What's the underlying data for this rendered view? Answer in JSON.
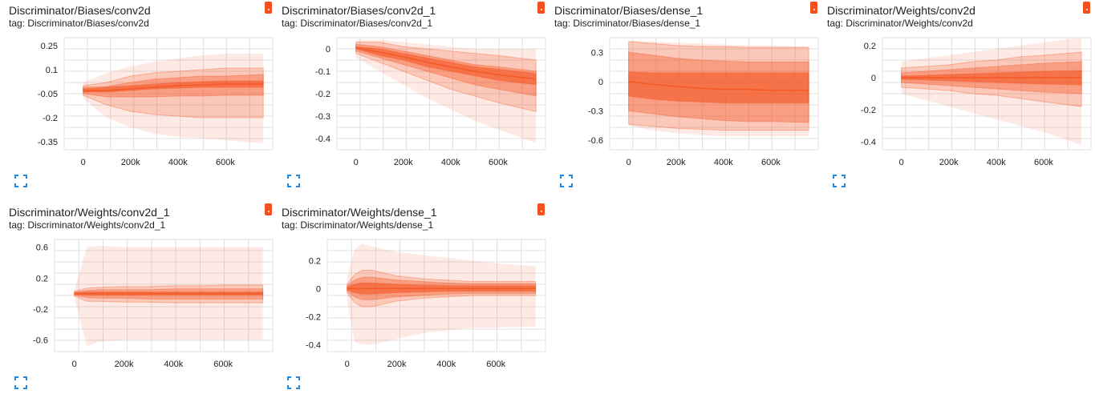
{
  "colors": {
    "band": "#f4511e",
    "menu": "#f4511e",
    "icon": "#1e88e5",
    "grid": "#e0e0e0"
  },
  "icons": {
    "menu": "menu-dot-icon",
    "expand": "fullscreen-icon"
  },
  "chart_data": [
    {
      "type": "area",
      "title": "Discriminator/Biases/conv2d",
      "subtitle": "tag: Discriminator/Biases/conv2d",
      "x_ticks": [
        0,
        200000,
        400000,
        600000
      ],
      "x_tick_labels": [
        "0",
        "200k",
        "400k",
        "600k"
      ],
      "y_ticks": [
        0.25,
        0.1,
        -0.05,
        -0.2,
        -0.35
      ],
      "y_tick_labels": [
        "0.25",
        "0.1",
        "-0.05",
        "-0.2",
        "-0.35"
      ],
      "xlim": [
        -80000,
        800000
      ],
      "ylim": [
        -0.4,
        0.3
      ],
      "grid": true,
      "x": [
        0,
        100000,
        200000,
        300000,
        400000,
        500000,
        600000,
        760000
      ],
      "bands": [
        [
          [
            -0.08,
            -0.2,
            -0.26,
            -0.3,
            -0.32,
            -0.33,
            -0.34,
            -0.36
          ],
          [
            0.02,
            0.08,
            0.12,
            0.15,
            0.17,
            0.19,
            0.2,
            0.2
          ]
        ],
        [
          [
            -0.06,
            -0.12,
            -0.16,
            -0.18,
            -0.19,
            -0.2,
            -0.2,
            -0.2
          ],
          [
            0.0,
            0.02,
            0.06,
            0.08,
            0.09,
            0.1,
            0.11,
            0.11
          ]
        ],
        [
          [
            -0.05,
            -0.07,
            -0.07,
            -0.07,
            -0.065,
            -0.065,
            -0.06,
            -0.06
          ],
          [
            -0.01,
            -0.005,
            0.02,
            0.04,
            0.05,
            0.06,
            0.06,
            0.07
          ]
        ],
        [
          [
            -0.04,
            -0.04,
            -0.03,
            -0.02,
            -0.015,
            -0.01,
            -0.01,
            -0.01
          ],
          [
            -0.02,
            -0.01,
            0.0,
            0.01,
            0.02,
            0.025,
            0.03,
            0.03
          ]
        ]
      ],
      "median": [
        -0.03,
        -0.03,
        -0.02,
        -0.01,
        0.0,
        0.005,
        0.01,
        0.01
      ]
    },
    {
      "type": "area",
      "title": "Discriminator/Biases/conv2d_1",
      "subtitle": "tag: Discriminator/Biases/conv2d_1",
      "x_ticks": [
        0,
        200000,
        400000,
        600000
      ],
      "x_tick_labels": [
        "0",
        "200k",
        "400k",
        "600k"
      ],
      "y_ticks": [
        0,
        -0.1,
        -0.2,
        -0.3,
        -0.4
      ],
      "y_tick_labels": [
        "0",
        "-0.1",
        "-0.2",
        "-0.3",
        "-0.4"
      ],
      "xlim": [
        -80000,
        800000
      ],
      "ylim": [
        -0.45,
        0.05
      ],
      "grid": true,
      "x": [
        0,
        100000,
        200000,
        300000,
        400000,
        500000,
        600000,
        760000
      ],
      "bands": [
        [
          [
            -0.04,
            -0.1,
            -0.16,
            -0.22,
            -0.27,
            -0.32,
            -0.36,
            -0.42
          ],
          [
            0.04,
            0.04,
            0.03,
            0.02,
            0.01,
            0.0,
            0.0,
            0.0
          ]
        ],
        [
          [
            -0.02,
            -0.06,
            -0.1,
            -0.14,
            -0.18,
            -0.21,
            -0.24,
            -0.28
          ],
          [
            0.03,
            0.03,
            0.01,
            0.0,
            -0.01,
            -0.02,
            -0.03,
            -0.05
          ]
        ],
        [
          [
            -0.01,
            -0.04,
            -0.07,
            -0.1,
            -0.13,
            -0.16,
            -0.18,
            -0.21
          ],
          [
            0.02,
            0.01,
            -0.01,
            -0.03,
            -0.05,
            -0.07,
            -0.08,
            -0.1
          ]
        ],
        [
          [
            0.0,
            -0.03,
            -0.05,
            -0.08,
            -0.1,
            -0.12,
            -0.14,
            -0.16
          ],
          [
            0.01,
            0.0,
            -0.02,
            -0.04,
            -0.06,
            -0.08,
            -0.09,
            -0.11
          ]
        ]
      ],
      "median": [
        0.005,
        -0.015,
        -0.035,
        -0.06,
        -0.08,
        -0.1,
        -0.115,
        -0.135
      ]
    },
    {
      "type": "area",
      "title": "Discriminator/Biases/dense_1",
      "subtitle": "tag: Discriminator/Biases/dense_1",
      "x_ticks": [
        0,
        200000,
        400000,
        600000
      ],
      "x_tick_labels": [
        "0",
        "200k",
        "400k",
        "600k"
      ],
      "y_ticks": [
        0.3,
        0,
        -0.3,
        -0.6
      ],
      "y_tick_labels": [
        "0.3",
        "0",
        "-0.3",
        "-0.6"
      ],
      "xlim": [
        -80000,
        800000
      ],
      "ylim": [
        -0.7,
        0.45
      ],
      "grid": true,
      "x": [
        0,
        100000,
        200000,
        300000,
        400000,
        500000,
        600000,
        760000
      ],
      "bands": [
        [
          [
            -0.45,
            -0.5,
            -0.53,
            -0.55,
            -0.56,
            -0.56,
            -0.56,
            -0.56
          ],
          [
            0.42,
            0.41,
            0.4,
            0.39,
            0.38,
            0.37,
            0.37,
            0.36
          ]
        ],
        [
          [
            -0.44,
            -0.46,
            -0.48,
            -0.49,
            -0.5,
            -0.5,
            -0.5,
            -0.5
          ],
          [
            0.41,
            0.39,
            0.37,
            0.36,
            0.36,
            0.35,
            0.35,
            0.35
          ]
        ],
        [
          [
            -0.3,
            -0.33,
            -0.36,
            -0.38,
            -0.4,
            -0.41,
            -0.41,
            -0.42
          ],
          [
            0.3,
            0.27,
            0.24,
            0.22,
            0.21,
            0.2,
            0.2,
            0.2
          ]
        ],
        [
          [
            -0.15,
            -0.18,
            -0.2,
            -0.21,
            -0.22,
            -0.22,
            -0.22,
            -0.22
          ],
          [
            0.1,
            0.09,
            0.09,
            0.09,
            0.09,
            0.09,
            0.09,
            0.09
          ]
        ]
      ],
      "median": [
        0.0,
        -0.03,
        -0.05,
        -0.07,
        -0.08,
        -0.08,
        -0.09,
        -0.09
      ]
    },
    {
      "type": "area",
      "title": "Discriminator/Weights/conv2d",
      "subtitle": "tag: Discriminator/Weights/conv2d",
      "x_ticks": [
        0,
        200000,
        400000,
        600000
      ],
      "x_tick_labels": [
        "0",
        "200k",
        "400k",
        "600k"
      ],
      "y_ticks": [
        0.2,
        0,
        -0.2,
        -0.4
      ],
      "y_tick_labels": [
        "0.2",
        "0",
        "-0.2",
        "-0.4"
      ],
      "xlim": [
        -80000,
        800000
      ],
      "ylim": [
        -0.45,
        0.25
      ],
      "grid": true,
      "x": [
        0,
        100000,
        200000,
        300000,
        400000,
        500000,
        600000,
        760000
      ],
      "bands": [
        [
          [
            -0.1,
            -0.14,
            -0.18,
            -0.22,
            -0.26,
            -0.3,
            -0.34,
            -0.42
          ],
          [
            0.1,
            0.12,
            0.14,
            0.16,
            0.18,
            0.2,
            0.22,
            0.25
          ]
        ],
        [
          [
            -0.06,
            -0.07,
            -0.08,
            -0.1,
            -0.11,
            -0.13,
            -0.15,
            -0.18
          ],
          [
            0.06,
            0.07,
            0.08,
            0.1,
            0.11,
            0.13,
            0.14,
            0.16
          ]
        ],
        [
          [
            -0.03,
            -0.04,
            -0.05,
            -0.06,
            -0.07,
            -0.08,
            -0.09,
            -0.1
          ],
          [
            0.03,
            0.04,
            0.05,
            0.06,
            0.07,
            0.08,
            0.09,
            0.1
          ]
        ],
        [
          [
            -0.01,
            -0.015,
            -0.02,
            -0.025,
            -0.03,
            -0.035,
            -0.04,
            -0.045
          ],
          [
            0.01,
            0.015,
            0.02,
            0.025,
            0.03,
            0.035,
            0.04,
            0.045
          ]
        ]
      ],
      "median": [
        0.0,
        0.0,
        0.0,
        0.0,
        0.0,
        0.0,
        0.0,
        0.0
      ]
    },
    {
      "type": "area",
      "title": "Discriminator/Weights/conv2d_1",
      "subtitle": "tag: Discriminator/Weights/conv2d_1",
      "x_ticks": [
        0,
        200000,
        400000,
        600000
      ],
      "x_tick_labels": [
        "0",
        "200k",
        "400k",
        "600k"
      ],
      "y_ticks": [
        0.6,
        0.2,
        -0.2,
        -0.6
      ],
      "y_tick_labels": [
        "0.6",
        "0.2",
        "-0.2",
        "-0.6"
      ],
      "xlim": [
        -80000,
        800000
      ],
      "ylim": [
        -0.75,
        0.7
      ],
      "grid": true,
      "x": [
        0,
        50000,
        100000,
        200000,
        300000,
        400000,
        500000,
        600000,
        760000
      ],
      "bands": [
        [
          [
            -0.05,
            -0.68,
            -0.62,
            -0.6,
            -0.6,
            -0.6,
            -0.6,
            -0.6,
            -0.6
          ],
          [
            0.05,
            0.6,
            0.62,
            0.6,
            0.6,
            0.6,
            0.6,
            0.6,
            0.6
          ]
        ],
        [
          [
            -0.03,
            -0.1,
            -0.1,
            -0.11,
            -0.11,
            -0.12,
            -0.12,
            -0.12,
            -0.12
          ],
          [
            0.03,
            0.07,
            0.08,
            0.09,
            0.09,
            0.1,
            0.1,
            0.11,
            0.11
          ]
        ],
        [
          [
            -0.02,
            -0.05,
            -0.06,
            -0.06,
            -0.07,
            -0.07,
            -0.07,
            -0.07,
            -0.07
          ],
          [
            0.02,
            0.04,
            0.05,
            0.05,
            0.05,
            0.06,
            0.06,
            0.06,
            0.06
          ]
        ],
        [
          [
            -0.01,
            -0.02,
            -0.02,
            -0.02,
            -0.02,
            -0.02,
            -0.02,
            -0.02,
            -0.02
          ],
          [
            0.01,
            0.02,
            0.02,
            0.02,
            0.02,
            0.02,
            0.02,
            0.02,
            0.02
          ]
        ]
      ],
      "median": [
        0.0,
        0.0,
        0.0,
        0.0,
        0.0,
        0.0,
        0.0,
        0.0,
        0.0
      ]
    },
    {
      "type": "area",
      "title": "Discriminator/Weights/dense_1",
      "subtitle": "tag: Discriminator/Weights/dense_1",
      "x_ticks": [
        0,
        200000,
        400000,
        600000
      ],
      "x_tick_labels": [
        "0",
        "200k",
        "400k",
        "600k"
      ],
      "y_ticks": [
        0.2,
        0,
        -0.2,
        -0.4
      ],
      "y_tick_labels": [
        "0.2",
        "0",
        "-0.2",
        "-0.4"
      ],
      "xlim": [
        -80000,
        800000
      ],
      "ylim": [
        -0.45,
        0.35
      ],
      "grid": true,
      "x": [
        0,
        30000,
        60000,
        100000,
        150000,
        200000,
        300000,
        400000,
        500000,
        600000,
        760000
      ],
      "bands": [
        [
          [
            -0.08,
            -0.38,
            -0.4,
            -0.4,
            -0.38,
            -0.36,
            -0.32,
            -0.3,
            -0.28,
            -0.28,
            -0.27
          ],
          [
            0.08,
            0.28,
            0.32,
            0.3,
            0.28,
            0.26,
            0.24,
            0.22,
            0.2,
            0.18,
            0.16
          ]
        ],
        [
          [
            -0.03,
            -0.1,
            -0.13,
            -0.13,
            -0.11,
            -0.09,
            -0.07,
            -0.06,
            -0.05,
            -0.05,
            -0.05
          ],
          [
            0.03,
            0.1,
            0.13,
            0.13,
            0.11,
            0.09,
            0.07,
            0.06,
            0.05,
            0.05,
            0.05
          ]
        ],
        [
          [
            -0.02,
            -0.06,
            -0.08,
            -0.08,
            -0.07,
            -0.06,
            -0.05,
            -0.04,
            -0.035,
            -0.035,
            -0.035
          ],
          [
            0.02,
            0.06,
            0.08,
            0.08,
            0.07,
            0.06,
            0.05,
            0.04,
            0.035,
            0.035,
            0.035
          ]
        ],
        [
          [
            -0.01,
            -0.03,
            -0.04,
            -0.04,
            -0.035,
            -0.03,
            -0.025,
            -0.02,
            -0.02,
            -0.02,
            -0.02
          ],
          [
            0.01,
            0.03,
            0.04,
            0.04,
            0.035,
            0.03,
            0.025,
            0.02,
            0.02,
            0.02,
            0.02
          ]
        ]
      ],
      "median": [
        0.0,
        0.0,
        0.0,
        0.0,
        0.0,
        0.0,
        0.0,
        0.0,
        0.0,
        0.0,
        0.0
      ]
    }
  ]
}
